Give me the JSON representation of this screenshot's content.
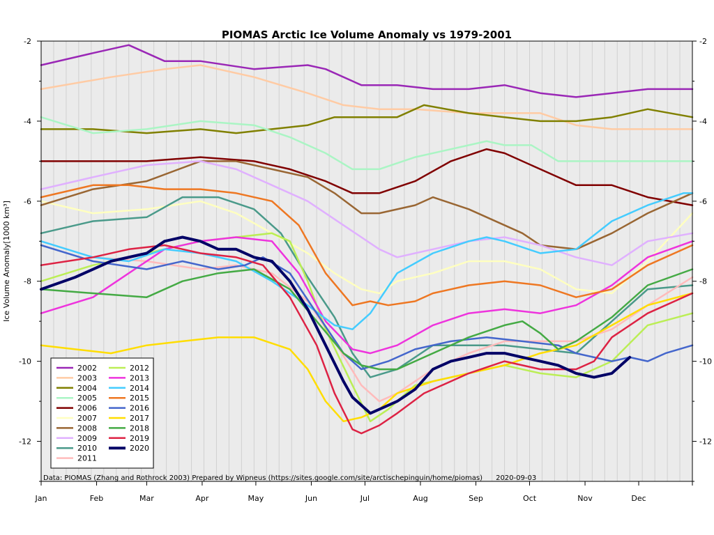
{
  "chart_data": {
    "type": "line",
    "title": "PIOMAS Arctic Ice Volume Anomaly vs 1979-2001",
    "ylabel": "Ice Volume Anomaly[1000 km³]",
    "xlabel": "",
    "x_ticks": [
      "Jan",
      "Feb",
      "Mar",
      "Apr",
      "May",
      "Jun",
      "Jul",
      "Aug",
      "Sep",
      "Oct",
      "Nov",
      "Dec"
    ],
    "ylim": [
      -13,
      -2
    ],
    "y_ticks": [
      -2,
      -4,
      -6,
      -8,
      -10,
      -12
    ],
    "x_unit": "day_of_year",
    "xlim": [
      1,
      365
    ],
    "grid": true,
    "legend_position": "bottom-left",
    "source_note": "Data: PIOMAS (Zhang and Rothrock 2003) Prepared by Wipneus (https://sites.google.com/site/arctischepinguin/home/piomas)      2020-09-03",
    "series": [
      {
        "name": "2002",
        "color": "#9a27b6",
        "width": 2.5,
        "x": [
          1,
          30,
          50,
          70,
          90,
          120,
          150,
          160,
          180,
          200,
          220,
          240,
          260,
          280,
          300,
          320,
          340,
          365
        ],
        "y": [
          -2.6,
          -2.3,
          -2.1,
          -2.5,
          -2.5,
          -2.7,
          -2.6,
          -2.7,
          -3.1,
          -3.1,
          -3.2,
          -3.2,
          -3.1,
          -3.3,
          -3.4,
          -3.3,
          -3.2,
          -3.2
        ]
      },
      {
        "name": "2003",
        "color": "#ffcba4",
        "width": 2.5,
        "x": [
          1,
          40,
          70,
          90,
          120,
          150,
          170,
          190,
          210,
          240,
          260,
          280,
          300,
          320,
          340,
          365
        ],
        "y": [
          -3.2,
          -2.9,
          -2.7,
          -2.6,
          -2.9,
          -3.3,
          -3.6,
          -3.7,
          -3.7,
          -3.8,
          -3.8,
          -3.8,
          -4.1,
          -4.2,
          -4.2,
          -4.2
        ]
      },
      {
        "name": "2004",
        "color": "#808000",
        "width": 2.5,
        "x": [
          1,
          30,
          60,
          90,
          110,
          130,
          150,
          165,
          180,
          200,
          215,
          240,
          260,
          280,
          300,
          320,
          340,
          365
        ],
        "y": [
          -4.2,
          -4.2,
          -4.3,
          -4.2,
          -4.3,
          -4.2,
          -4.1,
          -3.9,
          -3.9,
          -3.9,
          -3.6,
          -3.8,
          -3.9,
          -4.0,
          -4.0,
          -3.9,
          -3.7,
          -3.9
        ]
      },
      {
        "name": "2005",
        "color": "#aaf5c4",
        "width": 2.5,
        "x": [
          1,
          30,
          60,
          90,
          120,
          140,
          160,
          175,
          190,
          210,
          240,
          250,
          260,
          275,
          290,
          310,
          340,
          365
        ],
        "y": [
          -3.9,
          -4.3,
          -4.2,
          -4.0,
          -4.1,
          -4.4,
          -4.8,
          -5.2,
          -5.2,
          -4.9,
          -4.6,
          -4.5,
          -4.6,
          -4.6,
          -5.0,
          -5.0,
          -5.0,
          -5.0
        ]
      },
      {
        "name": "2006",
        "color": "#800000",
        "width": 2.5,
        "x": [
          1,
          30,
          60,
          90,
          120,
          140,
          160,
          175,
          190,
          210,
          230,
          250,
          260,
          280,
          300,
          320,
          340,
          365
        ],
        "y": [
          -5.0,
          -5.0,
          -5.0,
          -4.9,
          -5.0,
          -5.2,
          -5.5,
          -5.8,
          -5.8,
          -5.5,
          -5.0,
          -4.7,
          -4.8,
          -5.2,
          -5.6,
          -5.6,
          -5.9,
          -6.1
        ]
      },
      {
        "name": "2007",
        "color": "#ffffc0",
        "width": 2.5,
        "x": [
          1,
          30,
          60,
          90,
          110,
          130,
          150,
          165,
          180,
          190,
          200,
          220,
          240,
          260,
          280,
          300,
          320,
          340,
          365
        ],
        "y": [
          -6.0,
          -6.3,
          -6.2,
          -6.0,
          -6.3,
          -6.8,
          -7.3,
          -7.8,
          -8.2,
          -8.3,
          -8.0,
          -7.8,
          -7.5,
          -7.5,
          -7.7,
          -8.2,
          -8.3,
          -7.5,
          -6.3
        ]
      },
      {
        "name": "2008",
        "color": "#996633",
        "width": 2.5,
        "x": [
          1,
          30,
          60,
          90,
          110,
          130,
          150,
          165,
          180,
          190,
          210,
          220,
          240,
          260,
          270,
          280,
          300,
          320,
          340,
          365
        ],
        "y": [
          -6.1,
          -5.7,
          -5.5,
          -5.0,
          -5.0,
          -5.2,
          -5.4,
          -5.8,
          -6.3,
          -6.3,
          -6.1,
          -5.9,
          -6.2,
          -6.6,
          -6.8,
          -7.1,
          -7.2,
          -6.8,
          -6.3,
          -5.8
        ]
      },
      {
        "name": "2009",
        "color": "#e0b0ff",
        "width": 2.5,
        "x": [
          1,
          30,
          60,
          90,
          110,
          130,
          150,
          170,
          190,
          200,
          210,
          220,
          240,
          260,
          280,
          300,
          320,
          340,
          365
        ],
        "y": [
          -5.7,
          -5.4,
          -5.1,
          -5.0,
          -5.2,
          -5.6,
          -6.0,
          -6.6,
          -7.2,
          -7.4,
          -7.3,
          -7.2,
          -7.0,
          -6.9,
          -7.1,
          -7.4,
          -7.6,
          -7.0,
          -6.8
        ]
      },
      {
        "name": "2010",
        "color": "#4a9a8a",
        "width": 2.5,
        "x": [
          1,
          30,
          60,
          80,
          100,
          120,
          135,
          150,
          165,
          175,
          185,
          200,
          220,
          240,
          260,
          280,
          300,
          320,
          340,
          365
        ],
        "y": [
          -6.8,
          -6.5,
          -6.4,
          -5.9,
          -5.9,
          -6.2,
          -6.8,
          -7.9,
          -8.9,
          -9.8,
          -10.4,
          -10.2,
          -9.6,
          -9.6,
          -9.6,
          -9.7,
          -9.8,
          -9.0,
          -8.2,
          -8.1
        ]
      },
      {
        "name": "2011",
        "color": "#ffbbbb",
        "width": 2.5,
        "x": [
          1,
          30,
          60,
          90,
          110,
          130,
          150,
          165,
          180,
          190,
          200,
          220,
          240,
          260,
          280,
          300,
          320,
          340,
          365
        ],
        "y": [
          -7.6,
          -7.4,
          -7.5,
          -7.7,
          -7.6,
          -7.8,
          -8.5,
          -9.5,
          -10.6,
          -11.0,
          -10.8,
          -10.2,
          -9.8,
          -9.5,
          -9.5,
          -9.5,
          -9.2,
          -8.6,
          -7.9
        ]
      },
      {
        "name": "2012",
        "color": "#bbee55",
        "width": 2.5,
        "x": [
          1,
          30,
          60,
          90,
          110,
          130,
          140,
          150,
          160,
          175,
          185,
          195,
          210,
          220,
          240,
          260,
          280,
          300,
          320,
          340,
          365
        ],
        "y": [
          -8.0,
          -7.6,
          -7.3,
          -7.0,
          -6.9,
          -6.8,
          -7.0,
          -8.0,
          -9.2,
          -10.6,
          -11.5,
          -11.2,
          -10.6,
          -10.5,
          -10.3,
          -10.1,
          -10.3,
          -10.4,
          -10.0,
          -9.1,
          -8.8
        ]
      },
      {
        "name": "2013",
        "color": "#ee33dd",
        "width": 2.5,
        "x": [
          1,
          30,
          50,
          70,
          90,
          110,
          130,
          145,
          160,
          175,
          185,
          200,
          220,
          240,
          260,
          280,
          300,
          320,
          340,
          365
        ],
        "y": [
          -8.8,
          -8.4,
          -7.8,
          -7.2,
          -7.0,
          -6.9,
          -7.0,
          -7.8,
          -9.0,
          -9.7,
          -9.8,
          -9.6,
          -9.1,
          -8.8,
          -8.7,
          -8.8,
          -8.6,
          -8.1,
          -7.4,
          -7.0
        ]
      },
      {
        "name": "2014",
        "color": "#44ccff",
        "width": 2.5,
        "x": [
          1,
          30,
          50,
          70,
          90,
          110,
          130,
          150,
          165,
          175,
          185,
          200,
          220,
          240,
          250,
          260,
          280,
          300,
          320,
          340,
          360,
          365
        ],
        "y": [
          -7.0,
          -7.4,
          -7.5,
          -7.2,
          -7.3,
          -7.5,
          -8.0,
          -8.6,
          -9.1,
          -9.2,
          -8.8,
          -7.8,
          -7.3,
          -7.0,
          -6.9,
          -7.0,
          -7.3,
          -7.2,
          -6.5,
          -6.1,
          -5.8,
          -5.8
        ]
      },
      {
        "name": "2015",
        "color": "#ee7722",
        "width": 2.5,
        "x": [
          1,
          30,
          50,
          70,
          90,
          110,
          130,
          145,
          160,
          175,
          185,
          195,
          210,
          220,
          240,
          260,
          280,
          300,
          320,
          340,
          365
        ],
        "y": [
          -5.9,
          -5.6,
          -5.6,
          -5.7,
          -5.7,
          -5.8,
          -6.0,
          -6.6,
          -7.8,
          -8.6,
          -8.5,
          -8.6,
          -8.5,
          -8.3,
          -8.1,
          -8.0,
          -8.1,
          -8.4,
          -8.2,
          -7.6,
          -7.1
        ]
      },
      {
        "name": "2016",
        "color": "#4466cc",
        "width": 2.5,
        "x": [
          1,
          30,
          60,
          80,
          100,
          115,
          125,
          140,
          155,
          170,
          180,
          195,
          210,
          230,
          250,
          270,
          290,
          300,
          310,
          320,
          330,
          340,
          350,
          365
        ],
        "y": [
          -7.1,
          -7.5,
          -7.7,
          -7.5,
          -7.7,
          -7.6,
          -7.4,
          -7.8,
          -8.8,
          -9.8,
          -10.2,
          -10.0,
          -9.7,
          -9.5,
          -9.4,
          -9.5,
          -9.6,
          -9.8,
          -9.9,
          -10.0,
          -9.9,
          -10.0,
          -9.8,
          -9.6
        ]
      },
      {
        "name": "2017",
        "color": "#ffdd00",
        "width": 2.5,
        "x": [
          1,
          20,
          40,
          60,
          80,
          100,
          120,
          140,
          150,
          160,
          170,
          180,
          190,
          200,
          220,
          240,
          260,
          280,
          300,
          320,
          340,
          365
        ],
        "y": [
          -9.6,
          -9.7,
          -9.8,
          -9.6,
          -9.5,
          -9.4,
          -9.4,
          -9.7,
          -10.2,
          -11.0,
          -11.5,
          -11.4,
          -11.2,
          -10.8,
          -10.5,
          -10.3,
          -10.1,
          -9.8,
          -9.6,
          -9.1,
          -8.6,
          -8.3
        ]
      },
      {
        "name": "2018",
        "color": "#44aa44",
        "width": 2.5,
        "x": [
          1,
          30,
          60,
          80,
          100,
          120,
          140,
          155,
          170,
          180,
          190,
          200,
          220,
          240,
          260,
          270,
          280,
          290,
          300,
          320,
          340,
          365
        ],
        "y": [
          -8.2,
          -8.3,
          -8.4,
          -8.0,
          -7.8,
          -7.7,
          -8.2,
          -9.0,
          -9.8,
          -10.1,
          -10.2,
          -10.2,
          -9.8,
          -9.4,
          -9.1,
          -9.0,
          -9.3,
          -9.7,
          -9.5,
          -8.9,
          -8.1,
          -7.7
        ]
      },
      {
        "name": "2019",
        "color": "#dd2244",
        "width": 2.5,
        "x": [
          1,
          30,
          50,
          70,
          90,
          110,
          125,
          140,
          155,
          165,
          175,
          180,
          190,
          200,
          215,
          240,
          260,
          280,
          300,
          310,
          320,
          340,
          365
        ],
        "y": [
          -7.6,
          -7.4,
          -7.2,
          -7.1,
          -7.3,
          -7.4,
          -7.6,
          -8.4,
          -9.6,
          -10.8,
          -11.7,
          -11.8,
          -11.6,
          -11.3,
          -10.8,
          -10.3,
          -10.0,
          -10.2,
          -10.2,
          -10.0,
          -9.4,
          -8.8,
          -8.3
        ]
      },
      {
        "name": "2020",
        "color": "#000066",
        "width": 4.0,
        "x": [
          1,
          20,
          40,
          60,
          70,
          80,
          90,
          100,
          110,
          120,
          130,
          140,
          150,
          160,
          170,
          175,
          180,
          185,
          190,
          200,
          210,
          220,
          230,
          240,
          250,
          260,
          270,
          280,
          290,
          300,
          310,
          320,
          330
        ],
        "y": [
          -8.2,
          -7.9,
          -7.5,
          -7.3,
          -7.0,
          -6.9,
          -7.0,
          -7.2,
          -7.2,
          -7.4,
          -7.5,
          -8.0,
          -8.7,
          -9.6,
          -10.5,
          -10.9,
          -11.1,
          -11.3,
          -11.2,
          -11.0,
          -10.7,
          -10.2,
          -10.0,
          -9.9,
          -9.8,
          -9.8,
          -9.9,
          -10.0,
          -10.1,
          -10.3,
          -10.4,
          -10.3,
          -9.9
        ]
      }
    ]
  }
}
